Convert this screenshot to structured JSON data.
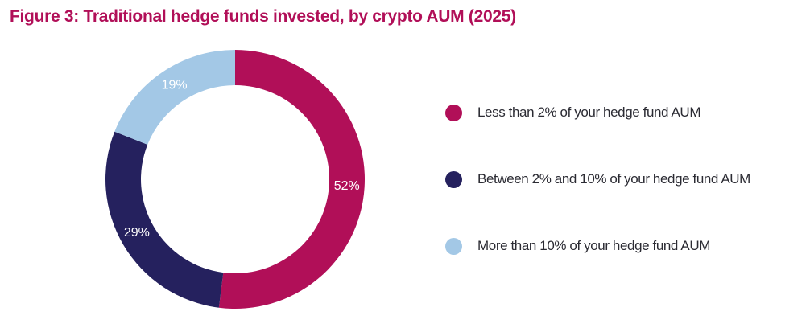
{
  "colors": {
    "title": "#b10f58",
    "background": "#ffffff"
  },
  "chart_data": {
    "type": "pie",
    "style": "donut",
    "title": "Figure 3: Traditional hedge funds invested, by crypto AUM (2025)",
    "start": "top, clockwise",
    "legend_position": "right",
    "slices": [
      {
        "label": "Less than 2% of your hedge fund AUM",
        "value": 52,
        "value_label": "52%",
        "color": "#b10f58",
        "icon": "magenta-dot-icon"
      },
      {
        "label": "Between 2% and 10% of your hedge fund AUM",
        "value": 29,
        "value_label": "29%",
        "color": "#25215e",
        "icon": "navy-dot-icon"
      },
      {
        "label": "More than 10% of your hedge fund AUM",
        "value": 19,
        "value_label": "19%",
        "color": "#a3c8e6",
        "icon": "light-blue-dot-icon"
      }
    ]
  }
}
